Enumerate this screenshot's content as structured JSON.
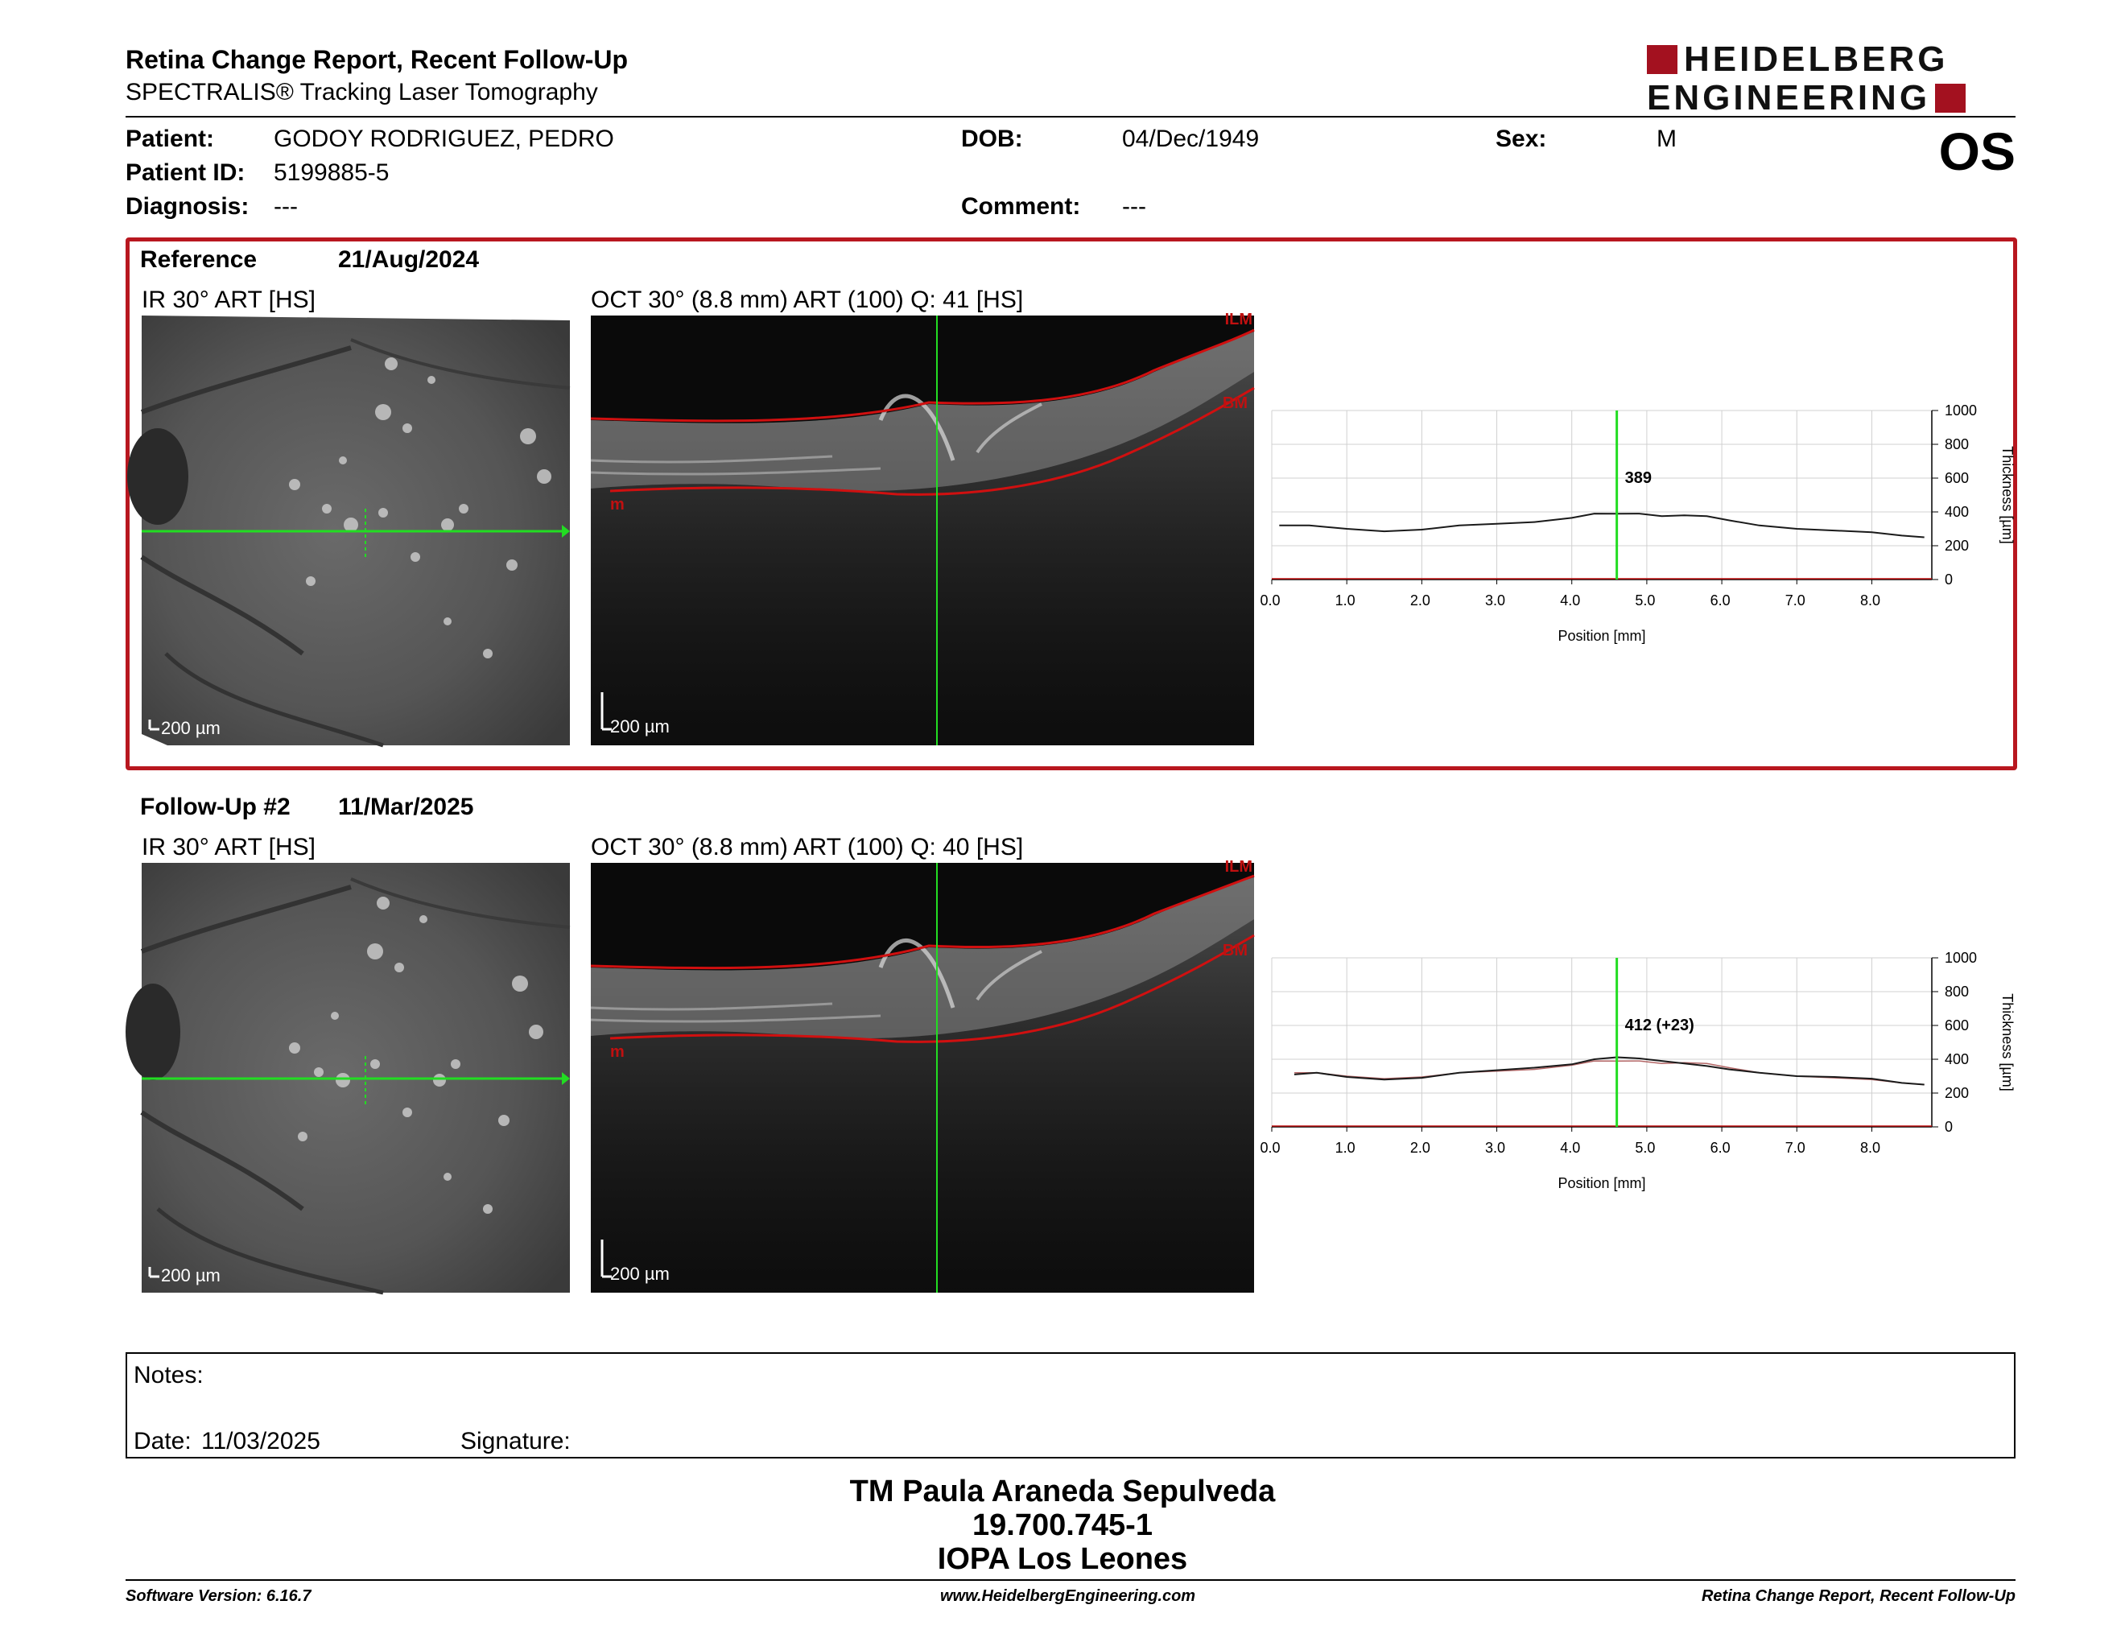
{
  "header": {
    "title": "Retina Change Report, Recent Follow-Up",
    "subtitle": "SPECTRALIS® Tracking Laser Tomography",
    "logo_line1": "HEIDELBERG",
    "logo_line2": "ENGINEERING",
    "eye": "OS"
  },
  "patient": {
    "patient_label": "Patient:",
    "patient_value": "GODOY RODRIGUEZ, PEDRO",
    "id_label": "Patient ID:",
    "id_value": "5199885-5",
    "diagnosis_label": "Diagnosis:",
    "diagnosis_value": "---",
    "dob_label": "DOB:",
    "dob_value": "04/Dec/1949",
    "comment_label": "Comment:",
    "comment_value": "---",
    "sex_label": "Sex:",
    "sex_value": "M"
  },
  "colors": {
    "brand_red": "#a3111f",
    "reference_border": "#b8171f",
    "scan_line": "#22dd22",
    "segmentation": "#d01010"
  },
  "exams": [
    {
      "label": "Reference",
      "date": "21/Aug/2024",
      "ir_label": "IR 30° ART [HS]",
      "oct_label": "OCT 30° (8.8 mm) ART (100) Q: 41 [HS]",
      "scale": "200 µm",
      "layer_top": "ILM",
      "layer_bm": "BM",
      "layer_m": "m"
    },
    {
      "label": "Follow-Up #2",
      "date": "11/Mar/2025",
      "ir_label": "IR 30° ART [HS]",
      "oct_label": "OCT 30° (8.8 mm) ART (100) Q: 40 [HS]",
      "scale": "200 µm",
      "layer_top": "ILM",
      "layer_bm": "BM",
      "layer_m": "m"
    }
  ],
  "chart_data": [
    {
      "type": "line",
      "xlabel": "Position [mm]",
      "ylabel": "Thickness [µm]",
      "xlim": [
        0.0,
        8.8
      ],
      "ylim": [
        0,
        1000
      ],
      "x_ticks": [
        "0.0",
        "1.0",
        "2.0",
        "3.0",
        "4.0",
        "5.0",
        "6.0",
        "7.0",
        "8.0"
      ],
      "y_ticks": [
        "0",
        "200",
        "400",
        "600",
        "800",
        "1000"
      ],
      "grid": true,
      "cursor_x": 4.6,
      "cursor_label": "389",
      "series": [
        {
          "x": [
            0.1,
            0.5,
            1.0,
            1.5,
            2.0,
            2.5,
            3.0,
            3.5,
            4.0,
            4.3,
            4.6,
            4.9,
            5.2,
            5.5,
            5.8,
            6.1,
            6.5,
            7.0,
            7.5,
            8.0,
            8.4,
            8.7
          ],
          "y": [
            320,
            320,
            300,
            285,
            295,
            320,
            330,
            340,
            365,
            390,
            389,
            390,
            375,
            380,
            375,
            350,
            320,
            300,
            290,
            280,
            260,
            250
          ]
        }
      ]
    },
    {
      "type": "line",
      "xlabel": "Position [mm]",
      "ylabel": "Thickness [µm]",
      "xlim": [
        0.0,
        8.8
      ],
      "ylim": [
        0,
        1000
      ],
      "x_ticks": [
        "0.0",
        "1.0",
        "2.0",
        "3.0",
        "4.0",
        "5.0",
        "6.0",
        "7.0",
        "8.0"
      ],
      "y_ticks": [
        "0",
        "200",
        "400",
        "600",
        "800",
        "1000"
      ],
      "grid": true,
      "cursor_x": 4.6,
      "cursor_label": "412 (+23)",
      "series": [
        {
          "x": [
            0.3,
            0.6,
            1.0,
            1.5,
            2.0,
            2.5,
            3.0,
            3.5,
            4.0,
            4.3,
            4.6,
            4.9,
            5.2,
            5.5,
            5.8,
            6.1,
            6.5,
            7.0,
            7.5,
            8.0,
            8.4,
            8.7
          ],
          "y": [
            310,
            320,
            295,
            280,
            290,
            320,
            335,
            350,
            370,
            400,
            412,
            405,
            390,
            375,
            360,
            340,
            320,
            300,
            295,
            285,
            260,
            250
          ]
        },
        {
          "x": [
            0.3,
            0.6,
            1.0,
            1.5,
            2.0,
            2.5,
            3.0,
            3.5,
            4.0,
            4.3,
            4.6,
            4.9,
            5.2,
            5.5,
            5.8,
            6.1,
            6.5,
            7.0,
            7.5,
            8.0,
            8.4,
            8.7
          ],
          "y": [
            320,
            320,
            300,
            285,
            295,
            320,
            330,
            340,
            365,
            390,
            389,
            390,
            375,
            380,
            375,
            350,
            320,
            300,
            290,
            280,
            260,
            250
          ]
        }
      ]
    }
  ],
  "notes": {
    "notes_label": "Notes:",
    "date_label": "Date:",
    "date_value": "11/03/2025",
    "signature_label": "Signature:"
  },
  "signature": {
    "name": "TM Paula Araneda Sepulveda",
    "rut": "19.700.745-1",
    "institution": "IOPA Los Leones"
  },
  "footer": {
    "software": "Software Version: 6.16.7",
    "website": "www.HeidelbergEngineering.com",
    "report_name": "Retina Change Report, Recent Follow-Up"
  }
}
